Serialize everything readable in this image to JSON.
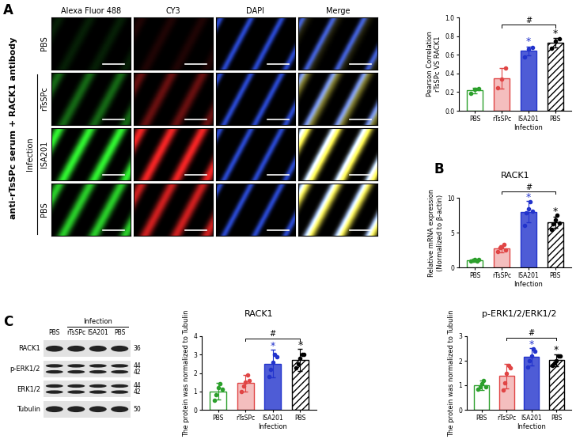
{
  "panel_labels": [
    "A",
    "B",
    "C"
  ],
  "micrographs": {
    "side_label": "anti-rTsSPc serum + RACK1 antibody",
    "columns": [
      "Alexa Fluor 488",
      "CY3",
      "DAPI",
      "Merge"
    ],
    "rows": [
      "PBS",
      "rTsSPc",
      "ISA201",
      "PBS"
    ],
    "group": {
      "label": "Infection",
      "rows": [
        1,
        2,
        3
      ]
    }
  },
  "western_blot": {
    "lanes": [
      "PBS",
      "rTsSPc",
      "ISA201",
      "PBS"
    ],
    "group": {
      "label": "Infection",
      "lanes": [
        1,
        2,
        3
      ]
    },
    "bands": [
      {
        "name": "RACK1",
        "mw": [
          36
        ]
      },
      {
        "name": "p-ERK1/2",
        "mw": [
          44,
          42
        ]
      },
      {
        "name": "ERK1/2",
        "mw": [
          44,
          42
        ]
      },
      {
        "name": "Tubulin",
        "mw": [
          50
        ]
      }
    ]
  },
  "chart_data": [
    {
      "type": "bar",
      "y_label": "Pearson Correlation\nrTsSPc VS RACK1",
      "categories": [
        "PBS",
        "rTsSPc",
        "ISA201",
        "PBS"
      ],
      "x_group": {
        "label": "Infection",
        "categories": [
          1,
          2,
          3
        ]
      },
      "values": [
        0.22,
        0.35,
        0.64,
        0.73
      ],
      "errors": [
        0.03,
        0.11,
        0.05,
        0.05
      ],
      "points": [
        [
          0.19,
          0.23,
          0.24
        ],
        [
          0.25,
          0.34,
          0.46
        ],
        [
          0.58,
          0.66,
          0.68
        ],
        [
          0.67,
          0.75,
          0.77
        ]
      ],
      "colors": [
        "#2ca02c",
        "#e04545",
        "#2233cc",
        "#000000"
      ],
      "ylim": [
        0.0,
        1.0
      ],
      "yticks": [
        0.0,
        0.2,
        0.4,
        0.6,
        0.8,
        1.0
      ],
      "annotations": [
        {
          "text": "*",
          "categories": [
            2
          ]
        },
        {
          "text": "*",
          "categories": [
            3
          ]
        },
        {
          "text": "#",
          "categories": [
            1,
            3
          ]
        }
      ]
    },
    {
      "type": "bar",
      "title": "RACK1",
      "y_label": "Relative mRNA expression\n(Normalized to β-actin)",
      "categories": [
        "PBS",
        "rTsSPc",
        "ISA201",
        "PBS"
      ],
      "x_group": {
        "label": "Infection",
        "categories": [
          1,
          2,
          3
        ]
      },
      "values": [
        1.0,
        2.7,
        8.0,
        6.5
      ],
      "errors": [
        0.15,
        0.5,
        1.5,
        0.8
      ],
      "points": [
        [
          0.9,
          1.0,
          1.1,
          0.9,
          1.1
        ],
        [
          2.3,
          2.8,
          3.0,
          3.3,
          2.5
        ],
        [
          6.0,
          7.8,
          8.4,
          9.4,
          8.1
        ],
        [
          5.5,
          6.2,
          6.8,
          7.5,
          6.4
        ]
      ],
      "colors": [
        "#2ca02c",
        "#e04545",
        "#2233cc",
        "#000000"
      ],
      "ylim": [
        0,
        10
      ],
      "yticks": [
        0,
        5,
        10
      ],
      "annotations": [
        {
          "text": "*",
          "categories": [
            2
          ]
        },
        {
          "text": "*",
          "categories": [
            3
          ]
        },
        {
          "text": "#",
          "categories": [
            1,
            3
          ]
        }
      ]
    },
    {
      "type": "bar",
      "title": "RACK1",
      "y_label": "The protein was normalized to Tubulin",
      "categories": [
        "PBS",
        "rTsSPc",
        "ISA201",
        "PBS"
      ],
      "x_group": {
        "label": "Infection",
        "categories": [
          1,
          2,
          3
        ]
      },
      "values": [
        1.0,
        1.45,
        2.5,
        2.72
      ],
      "errors": [
        0.45,
        0.45,
        0.75,
        0.6
      ],
      "points": [
        [
          0.5,
          0.8,
          1.2,
          1.4,
          1.1
        ],
        [
          1.0,
          1.3,
          1.5,
          1.9,
          1.6
        ],
        [
          1.8,
          2.2,
          2.6,
          3.0,
          2.9
        ],
        [
          2.3,
          2.5,
          2.8,
          3.0,
          3.0
        ]
      ],
      "colors": [
        "#2ca02c",
        "#e04545",
        "#2233cc",
        "#000000"
      ],
      "ylim": [
        0,
        4
      ],
      "yticks": [
        0,
        1,
        2,
        3,
        4
      ],
      "annotations": [
        {
          "text": "*",
          "categories": [
            2
          ]
        },
        {
          "text": "*",
          "categories": [
            3
          ]
        },
        {
          "text": "#",
          "categories": [
            1,
            3
          ]
        }
      ]
    },
    {
      "type": "bar",
      "title": "p-ERK1/2/ERK1/2",
      "y_label": "The protein was normalized to Tubulin",
      "categories": [
        "PBS",
        "rTsSPc",
        "ISA201",
        "PBS"
      ],
      "x_group": {
        "label": "Infection",
        "categories": [
          1,
          2,
          3
        ]
      },
      "values": [
        1.0,
        1.38,
        2.17,
        2.02
      ],
      "errors": [
        0.2,
        0.5,
        0.35,
        0.25
      ],
      "points": [
        [
          0.85,
          0.95,
          1.05,
          1.2,
          0.95
        ],
        [
          0.8,
          1.1,
          1.5,
          1.8,
          1.7
        ],
        [
          1.75,
          2.0,
          2.2,
          2.5,
          2.4
        ],
        [
          1.8,
          1.9,
          2.0,
          2.2,
          2.2
        ]
      ],
      "colors": [
        "#2ca02c",
        "#e04545",
        "#2233cc",
        "#000000"
      ],
      "ylim": [
        0,
        3
      ],
      "yticks": [
        0,
        1,
        2,
        3
      ],
      "annotations": [
        {
          "text": "*",
          "categories": [
            2
          ]
        },
        {
          "text": "*",
          "categories": [
            3
          ]
        },
        {
          "text": "#",
          "categories": [
            1,
            3
          ]
        }
      ]
    }
  ]
}
